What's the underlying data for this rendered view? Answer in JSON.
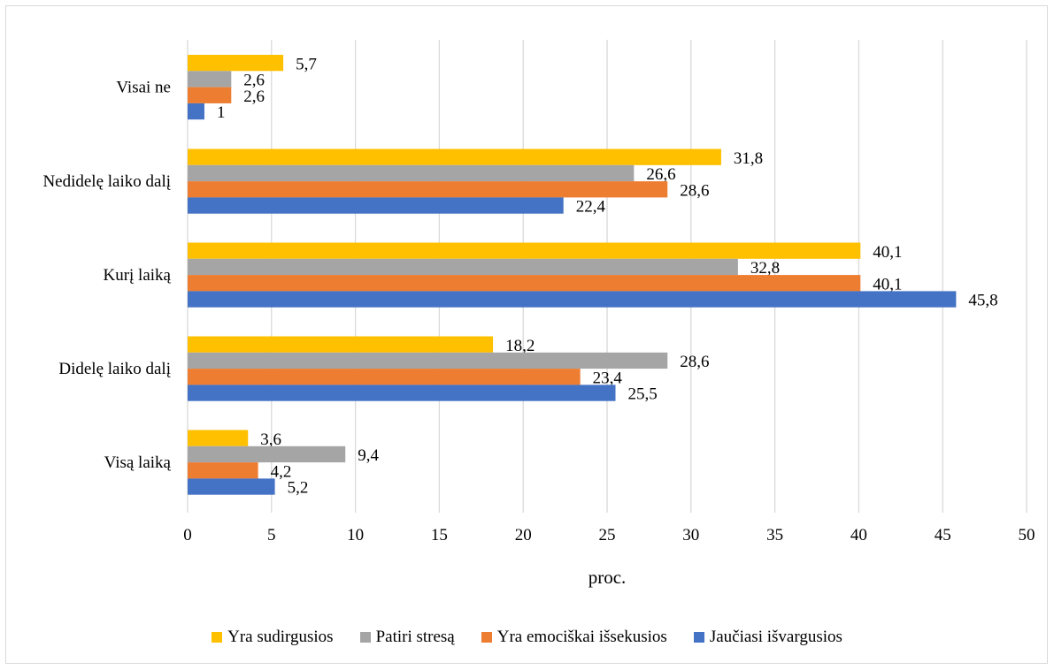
{
  "chart_data": {
    "type": "bar",
    "orientation": "horizontal",
    "categories": [
      "Visai ne",
      "Nedidelę laiko dalį",
      "Kurį laiką",
      "Didelę laiko dalį",
      "Visą laiką"
    ],
    "series": [
      {
        "name": "Yra sudirgusios",
        "color": "#FFC000",
        "values": [
          5.7,
          31.8,
          40.1,
          18.2,
          3.6
        ],
        "labels": [
          "5,7",
          "31,8",
          "40,1",
          "18,2",
          "3,6"
        ]
      },
      {
        "name": "Patiri stresą",
        "color": "#A5A5A5",
        "values": [
          2.6,
          26.6,
          32.8,
          28.6,
          9.4
        ],
        "labels": [
          "2,6",
          "26,6",
          "32,8",
          "28,6",
          "9,4"
        ]
      },
      {
        "name": "Yra emociškai išsekusios",
        "color": "#ED7D31",
        "values": [
          2.6,
          28.6,
          40.1,
          23.4,
          4.2
        ],
        "labels": [
          "2,6",
          "28,6",
          "40,1",
          "23,4",
          "4,2"
        ]
      },
      {
        "name": "Jaučiasi išvargusios",
        "color": "#4472C4",
        "values": [
          1,
          22.4,
          45.8,
          25.5,
          5.2
        ],
        "labels": [
          "1",
          "22,4",
          "45,8",
          "25,5",
          "5,2"
        ]
      }
    ],
    "xlabel": "proc.",
    "xlim": [
      0,
      50
    ],
    "xticks": [
      0,
      5,
      10,
      15,
      20,
      25,
      30,
      35,
      40,
      45,
      50
    ],
    "grid": "vertical",
    "legend_position": "bottom"
  }
}
